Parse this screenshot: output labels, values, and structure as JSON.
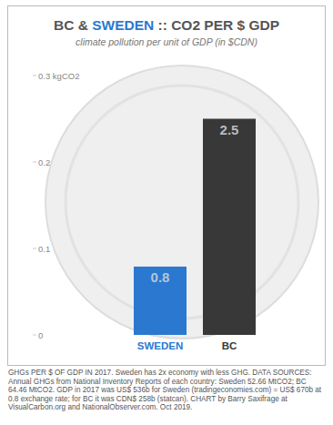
{
  "chart_data": {
    "type": "bar",
    "title": "BC & SWEDEN :: CO2 PER $ GDP",
    "subtitle": "climate pollution per unit of GDP (in $CDN)",
    "categories": [
      "SWEDEN",
      "BC"
    ],
    "values": [
      0.079,
      0.25
    ],
    "colors": [
      "#2b78d0",
      "#383838"
    ],
    "annotations": [
      "0.8",
      "2.5"
    ],
    "ylim": [
      0,
      0.3
    ],
    "yticks": [
      0,
      0.1,
      0.2,
      {
        "value": 0.3,
        "label": "0.3 kgCO2"
      }
    ],
    "grid": false,
    "source": "GHGs PER $ OF GDP IN 2017. Sweden has 2x economy with less GHG. DATA SOURCES: Annual GHGs from National Inventory Reports of each country: Sweden 52.66 MtCO2; BC 64.46 MtCO2. GDP in 2017 was US$ 536b for Sweden (tradingeconomies.com) = US$ 670b at 0.8 exchange rate; for BC it was CDN$ 258b (statcan). CHART by Barry Saxifrage at VisualCarbon.org and NationalObserver.com. Oct 2019."
  }
}
